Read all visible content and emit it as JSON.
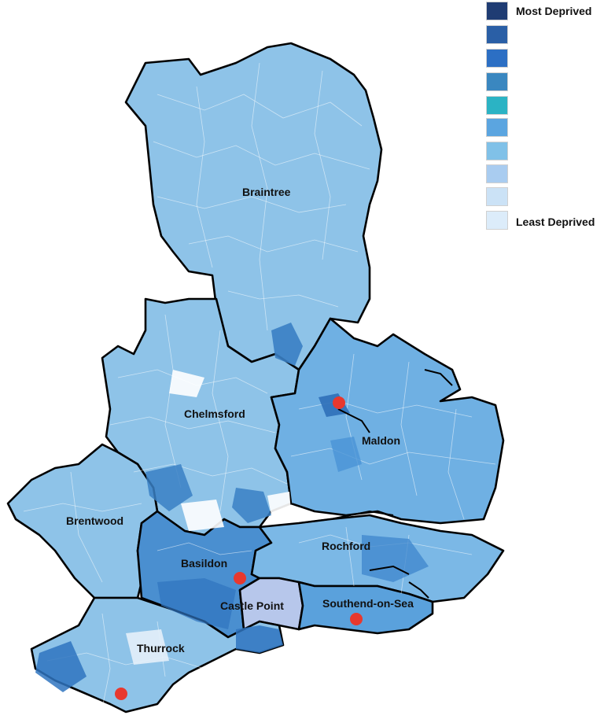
{
  "legend": {
    "top_label": "Most Deprived",
    "bottom_label": "Least Deprived",
    "colors": [
      "#1f3c73",
      "#2a5fa6",
      "#2c6fc4",
      "#3a87c0",
      "#2bb3c4",
      "#5ba5e0",
      "#80c1e8",
      "#a9ccf0",
      "#cbe2f6",
      "#dcecfa"
    ]
  },
  "districts": [
    {
      "name": "Braintree",
      "color": "#8ec3e8"
    },
    {
      "name": "Chelmsford",
      "color": "#8ec3e8"
    },
    {
      "name": "Maldon",
      "color": "#6fb0e3"
    },
    {
      "name": "Brentwood",
      "color": "#8ec3e8"
    },
    {
      "name": "Basildon",
      "color": "#4a8fd0"
    },
    {
      "name": "Rochford",
      "color": "#7bb8e6"
    },
    {
      "name": "Castle Point",
      "color": "#b7c7eb"
    },
    {
      "name": "Southend-on-Sea",
      "color": "#5aa1dc"
    },
    {
      "name": "Thurrock",
      "color": "#8ec3e8"
    }
  ],
  "markers": [
    "red-dot",
    "red-dot",
    "red-dot",
    "red-dot"
  ]
}
